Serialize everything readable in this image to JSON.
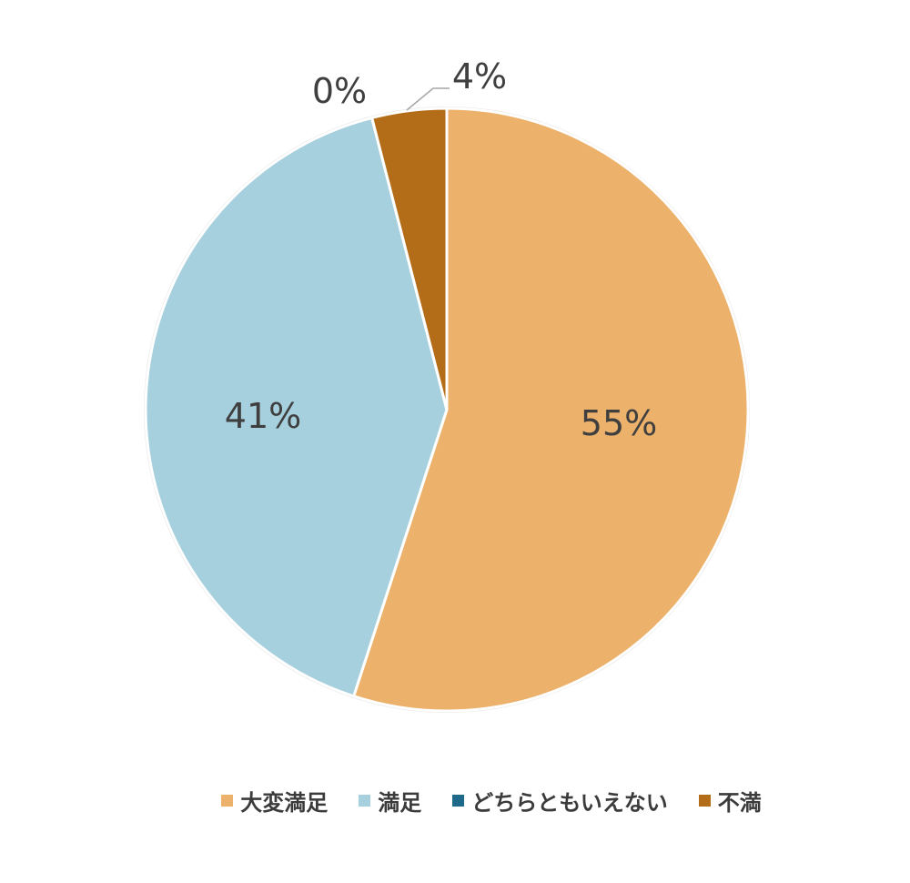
{
  "chart_data": {
    "type": "pie",
    "categories": [
      "大変満足",
      "満足",
      "どちらともいえない",
      "不満"
    ],
    "values": [
      55,
      41,
      0,
      4
    ],
    "labels": [
      "55%",
      "41%",
      "0%",
      "4%"
    ],
    "colors": [
      "#ecb16a",
      "#a7d0de",
      "#1f6a8a",
      "#b36c17"
    ],
    "legend_position": "bottom"
  }
}
